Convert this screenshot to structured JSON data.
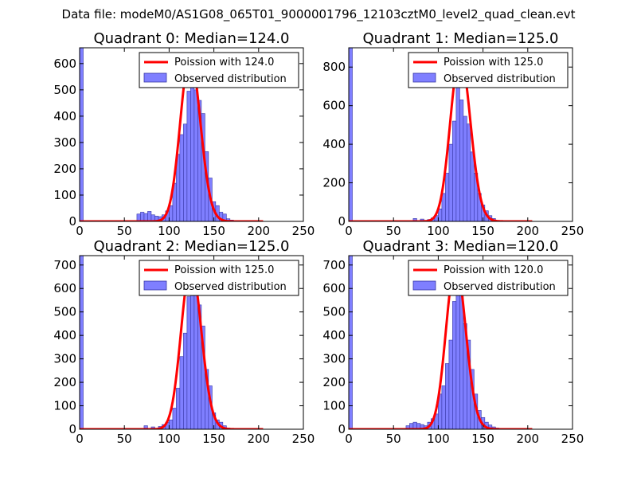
{
  "figure": {
    "suptitle": "Data file: modeM0/AS1G08_065T01_9000001796_12103cztM0_level2_quad_clean.evt"
  },
  "colors": {
    "hist_fill": "#7f7fff",
    "hist_edge": "#3535a5",
    "fit_line": "#ff0000",
    "background": "#ffffff",
    "axis": "#000000"
  },
  "chart_data": [
    {
      "type": "bar",
      "title": "Quadrant 0: Median=124.0",
      "xlim": [
        0,
        250
      ],
      "ylim": [
        0,
        660
      ],
      "xticks": [
        0,
        50,
        100,
        150,
        200,
        250
      ],
      "yticks": [
        0,
        100,
        200,
        300,
        400,
        500,
        600
      ],
      "legend_location": "top-right",
      "line_label": "Poission with 124.0",
      "hist_label": "Observed distribution",
      "poisson_lambda": 124.0,
      "poisson_peak": 630,
      "bin_width": 4,
      "zero_bin_count": 660,
      "bins": [
        [
          64,
          28
        ],
        [
          68,
          35
        ],
        [
          72,
          30
        ],
        [
          76,
          38
        ],
        [
          80,
          25
        ],
        [
          84,
          20
        ],
        [
          88,
          18
        ],
        [
          92,
          25
        ],
        [
          96,
          40
        ],
        [
          100,
          60
        ],
        [
          104,
          145
        ],
        [
          108,
          255
        ],
        [
          112,
          330
        ],
        [
          116,
          370
        ],
        [
          120,
          495
        ],
        [
          124,
          560
        ],
        [
          128,
          500
        ],
        [
          132,
          460
        ],
        [
          136,
          410
        ],
        [
          140,
          265
        ],
        [
          144,
          165
        ],
        [
          148,
          75
        ],
        [
          152,
          60
        ],
        [
          156,
          35
        ],
        [
          160,
          28
        ],
        [
          164,
          10
        ],
        [
          168,
          5
        ]
      ]
    },
    {
      "type": "bar",
      "title": "Quadrant 1: Median=125.0",
      "xlim": [
        0,
        250
      ],
      "ylim": [
        0,
        900
      ],
      "xticks": [
        0,
        50,
        100,
        150,
        200,
        250
      ],
      "yticks": [
        0,
        200,
        400,
        600,
        800
      ],
      "legend_location": "top-right",
      "line_label": "Poission with 125.0",
      "hist_label": "Observed distribution",
      "poisson_lambda": 125.0,
      "poisson_peak": 860,
      "bin_width": 4,
      "zero_bin_count": 900,
      "bins": [
        [
          72,
          15
        ],
        [
          80,
          12
        ],
        [
          88,
          10
        ],
        [
          92,
          18
        ],
        [
          96,
          30
        ],
        [
          100,
          65
        ],
        [
          104,
          145
        ],
        [
          108,
          250
        ],
        [
          112,
          400
        ],
        [
          116,
          520
        ],
        [
          120,
          715
        ],
        [
          124,
          630
        ],
        [
          128,
          545
        ],
        [
          132,
          505
        ],
        [
          136,
          360
        ],
        [
          140,
          250
        ],
        [
          144,
          145
        ],
        [
          148,
          85
        ],
        [
          152,
          55
        ],
        [
          156,
          30
        ],
        [
          160,
          15
        ],
        [
          164,
          5
        ]
      ]
    },
    {
      "type": "bar",
      "title": "Quadrant 2: Median=125.0",
      "xlim": [
        0,
        250
      ],
      "ylim": [
        0,
        740
      ],
      "xticks": [
        0,
        50,
        100,
        150,
        200,
        250
      ],
      "yticks": [
        0,
        100,
        200,
        300,
        400,
        500,
        600,
        700
      ],
      "legend_location": "top-right",
      "line_label": "Poission with 125.0",
      "hist_label": "Observed distribution",
      "poisson_lambda": 125.0,
      "poisson_peak": 700,
      "bin_width": 4,
      "zero_bin_count": 740,
      "bins": [
        [
          72,
          15
        ],
        [
          80,
          10
        ],
        [
          88,
          12
        ],
        [
          92,
          20
        ],
        [
          96,
          30
        ],
        [
          100,
          40
        ],
        [
          104,
          90
        ],
        [
          108,
          175
        ],
        [
          112,
          310
        ],
        [
          116,
          410
        ],
        [
          120,
          565
        ],
        [
          124,
          640
        ],
        [
          128,
          670
        ],
        [
          132,
          530
        ],
        [
          136,
          440
        ],
        [
          140,
          255
        ],
        [
          144,
          185
        ],
        [
          148,
          70
        ],
        [
          152,
          40
        ],
        [
          156,
          30
        ],
        [
          160,
          15
        ],
        [
          164,
          5
        ]
      ]
    },
    {
      "type": "bar",
      "title": "Quadrant 3: Median=120.0",
      "xlim": [
        0,
        250
      ],
      "ylim": [
        0,
        740
      ],
      "xticks": [
        0,
        50,
        100,
        150,
        200,
        250
      ],
      "yticks": [
        0,
        100,
        200,
        300,
        400,
        500,
        600,
        700
      ],
      "legend_location": "top-right",
      "line_label": "Poission with 120.0",
      "hist_label": "Observed distribution",
      "poisson_lambda": 120.0,
      "poisson_peak": 705,
      "bin_width": 4,
      "zero_bin_count": 740,
      "bins": [
        [
          64,
          15
        ],
        [
          68,
          25
        ],
        [
          72,
          30
        ],
        [
          76,
          25
        ],
        [
          80,
          20
        ],
        [
          84,
          15
        ],
        [
          88,
          30
        ],
        [
          92,
          45
        ],
        [
          96,
          65
        ],
        [
          100,
          150
        ],
        [
          104,
          185
        ],
        [
          108,
          280
        ],
        [
          112,
          380
        ],
        [
          116,
          545
        ],
        [
          120,
          660
        ],
        [
          124,
          580
        ],
        [
          128,
          450
        ],
        [
          132,
          380
        ],
        [
          136,
          255
        ],
        [
          140,
          150
        ],
        [
          144,
          80
        ],
        [
          148,
          50
        ],
        [
          152,
          30
        ],
        [
          156,
          18
        ],
        [
          160,
          10
        ],
        [
          164,
          5
        ]
      ]
    }
  ]
}
